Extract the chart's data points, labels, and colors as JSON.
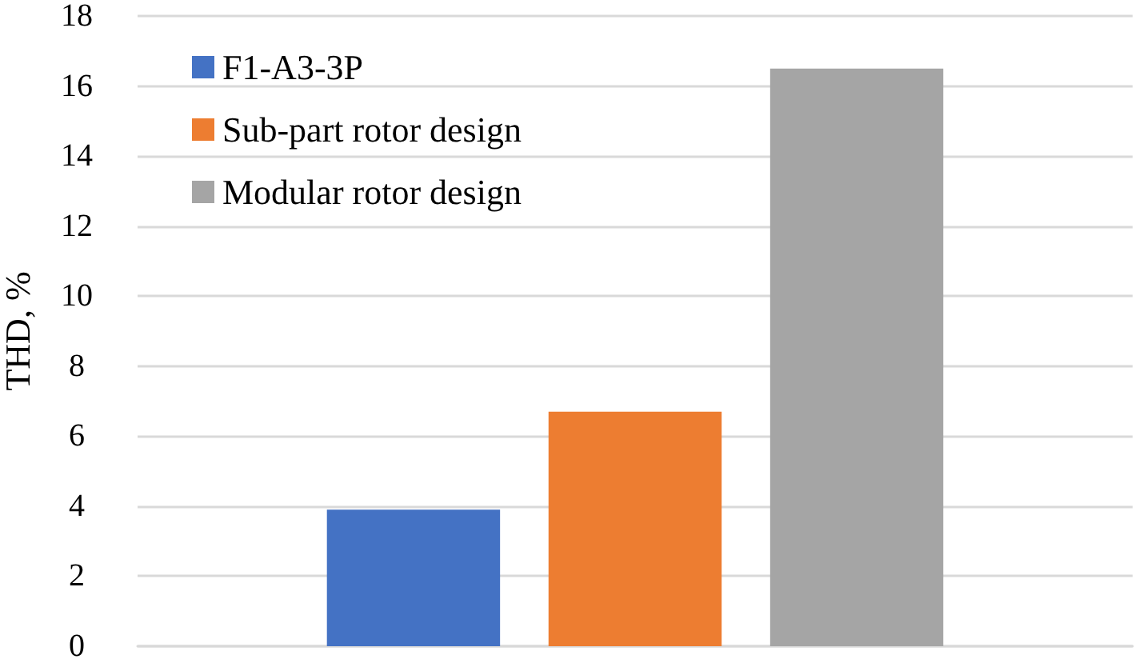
{
  "chart_data": {
    "type": "bar",
    "ylabel": "THD, %",
    "categories": [
      null
    ],
    "series": [
      {
        "name": "F1-A3-3P",
        "color": "#4472c4",
        "values": [
          3.9
        ]
      },
      {
        "name": "Sub-part rotor design",
        "color": "#ed7d31",
        "values": [
          6.7
        ]
      },
      {
        "name": "Modular rotor design",
        "color": "#a5a5a5",
        "values": [
          16.5
        ]
      }
    ],
    "ylim": [
      0,
      18
    ],
    "yticks": [
      0,
      2,
      4,
      6,
      8,
      10,
      12,
      14,
      16,
      18
    ],
    "grid": "y",
    "legend": "top left"
  }
}
